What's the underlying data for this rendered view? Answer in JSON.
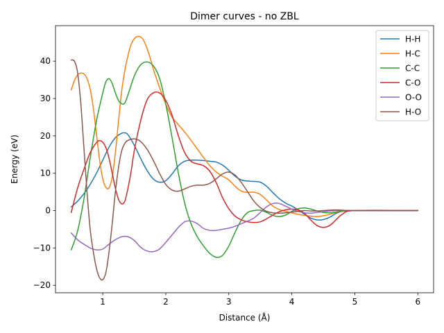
{
  "chart_data": {
    "type": "line",
    "title": "Dimer curves - no ZBL",
    "xlabel": "Distance (Å)",
    "ylabel": "Energy (eV)",
    "xlim": [
      0.25,
      6.25
    ],
    "ylim": [
      -22,
      49.5
    ],
    "xticks": [
      1,
      2,
      3,
      4,
      5,
      6
    ],
    "yticks": [
      -20,
      -10,
      0,
      10,
      20,
      30,
      40
    ],
    "grid": false,
    "legend_position": "upper right",
    "series": [
      {
        "name": "H-H",
        "color": "#1f77b4",
        "x": [
          0.5,
          0.6,
          0.7,
          0.8,
          0.9,
          1.0,
          1.1,
          1.2,
          1.3,
          1.35,
          1.4,
          1.5,
          1.6,
          1.7,
          1.8,
          1.9,
          2.0,
          2.1,
          2.2,
          2.3,
          2.4,
          2.5,
          2.6,
          2.7,
          2.8,
          2.9,
          3.0,
          3.1,
          3.2,
          3.3,
          3.4,
          3.5,
          3.6,
          3.7,
          3.8,
          3.9,
          4.0,
          4.1,
          4.2,
          4.3,
          4.4,
          4.5,
          4.6,
          4.7,
          4.8,
          5.0,
          6.0
        ],
        "y": [
          1.0,
          2.5,
          4.5,
          7.0,
          10.0,
          13.5,
          17.0,
          19.5,
          20.7,
          20.8,
          20.3,
          17.5,
          14.0,
          10.8,
          8.5,
          7.6,
          8.0,
          9.8,
          12.0,
          13.2,
          13.5,
          13.5,
          13.4,
          13.2,
          13.0,
          12.2,
          10.8,
          9.2,
          8.2,
          7.9,
          7.8,
          7.6,
          6.5,
          4.8,
          3.2,
          2.0,
          1.2,
          0.2,
          -1.0,
          -2.0,
          -2.5,
          -2.4,
          -1.8,
          -0.8,
          -0.2,
          0.0,
          0.0
        ]
      },
      {
        "name": "H-C",
        "color": "#ff7f0e",
        "x": [
          0.5,
          0.55,
          0.6,
          0.65,
          0.7,
          0.75,
          0.8,
          0.85,
          0.9,
          0.95,
          1.0,
          1.05,
          1.1,
          1.15,
          1.2,
          1.25,
          1.3,
          1.35,
          1.4,
          1.45,
          1.5,
          1.55,
          1.6,
          1.65,
          1.7,
          1.75,
          1.8,
          1.9,
          2.0,
          2.1,
          2.2,
          2.3,
          2.4,
          2.5,
          2.6,
          2.7,
          2.8,
          2.9,
          3.0,
          3.1,
          3.2,
          3.3,
          3.4,
          3.5,
          3.6,
          3.7,
          3.8,
          3.9,
          4.0,
          4.1,
          4.2,
          4.3,
          4.4,
          4.5,
          4.6,
          4.7,
          4.8,
          5.0,
          6.0
        ],
        "y": [
          32.3,
          34.8,
          36.3,
          36.8,
          36.6,
          35.3,
          32.5,
          27.5,
          20.5,
          13.5,
          8.5,
          6.2,
          6.1,
          9.0,
          15.5,
          24.0,
          32.0,
          37.5,
          41.5,
          44.5,
          46.0,
          46.6,
          46.5,
          45.5,
          43.5,
          41.0,
          38.0,
          33.0,
          28.5,
          25.0,
          23.0,
          21.0,
          18.8,
          16.5,
          14.2,
          12.0,
          10.3,
          9.2,
          8.2,
          6.5,
          5.2,
          4.9,
          4.9,
          4.3,
          2.8,
          1.2,
          0.3,
          -0.2,
          -0.6,
          -1.0,
          -1.3,
          -1.5,
          -1.6,
          -1.4,
          -1.0,
          -0.5,
          -0.2,
          0.0,
          0.0
        ]
      },
      {
        "name": "C-C",
        "color": "#2ca02c",
        "x": [
          0.5,
          0.6,
          0.7,
          0.8,
          0.9,
          1.0,
          1.05,
          1.1,
          1.15,
          1.2,
          1.25,
          1.3,
          1.35,
          1.4,
          1.5,
          1.6,
          1.7,
          1.8,
          1.9,
          2.0,
          2.1,
          2.2,
          2.3,
          2.4,
          2.5,
          2.6,
          2.7,
          2.8,
          2.9,
          3.0,
          3.1,
          3.2,
          3.3,
          3.4,
          3.5,
          3.6,
          3.7,
          3.8,
          3.9,
          4.0,
          4.1,
          4.2,
          4.3,
          4.4,
          4.5,
          4.6,
          4.7,
          4.8,
          5.0,
          6.0
        ],
        "y": [
          -10.5,
          -5.5,
          3.0,
          14.0,
          24.0,
          31.5,
          34.5,
          35.3,
          34.0,
          31.5,
          29.5,
          28.6,
          28.8,
          31.0,
          36.0,
          39.0,
          39.8,
          38.8,
          35.5,
          28.5,
          19.5,
          10.0,
          2.0,
          -3.5,
          -7.0,
          -9.5,
          -11.5,
          -12.5,
          -12.0,
          -9.5,
          -5.8,
          -2.5,
          -0.5,
          0.0,
          0.1,
          -0.5,
          -1.3,
          -1.6,
          -1.2,
          -0.2,
          0.5,
          0.7,
          0.4,
          -0.1,
          -0.5,
          -0.6,
          -0.4,
          -0.1,
          0.0,
          0.0
        ]
      },
      {
        "name": "C-O",
        "color": "#d62728",
        "x": [
          0.5,
          0.6,
          0.7,
          0.8,
          0.9,
          0.95,
          1.0,
          1.05,
          1.1,
          1.15,
          1.2,
          1.25,
          1.3,
          1.35,
          1.4,
          1.45,
          1.5,
          1.6,
          1.7,
          1.8,
          1.9,
          2.0,
          2.1,
          2.2,
          2.3,
          2.4,
          2.5,
          2.6,
          2.7,
          2.8,
          2.9,
          3.0,
          3.1,
          3.2,
          3.3,
          3.4,
          3.5,
          3.6,
          3.7,
          3.8,
          3.9,
          4.0,
          4.1,
          4.2,
          4.3,
          4.4,
          4.5,
          4.6,
          4.7,
          4.8,
          5.0,
          6.0
        ],
        "y": [
          -0.5,
          6.0,
          11.0,
          15.5,
          18.2,
          18.7,
          18.3,
          16.8,
          14.0,
          10.0,
          6.0,
          3.0,
          1.8,
          2.5,
          6.0,
          10.5,
          16.0,
          24.0,
          29.5,
          31.5,
          31.5,
          29.5,
          25.5,
          20.0,
          15.5,
          13.2,
          12.5,
          12.0,
          10.5,
          7.5,
          3.5,
          0.5,
          -1.5,
          -2.5,
          -3.0,
          -3.2,
          -3.0,
          -2.2,
          -1.2,
          -0.3,
          0.2,
          0.4,
          0.2,
          -0.7,
          -2.5,
          -4.0,
          -4.5,
          -4.0,
          -2.5,
          -1.0,
          0.0,
          0.0
        ]
      },
      {
        "name": "O-O",
        "color": "#9467bd",
        "x": [
          0.5,
          0.6,
          0.7,
          0.8,
          0.9,
          1.0,
          1.1,
          1.2,
          1.3,
          1.4,
          1.5,
          1.6,
          1.7,
          1.8,
          1.9,
          2.0,
          2.1,
          2.2,
          2.3,
          2.4,
          2.5,
          2.6,
          2.7,
          2.8,
          2.9,
          3.0,
          3.1,
          3.2,
          3.3,
          3.4,
          3.5,
          3.6,
          3.7,
          3.8,
          3.9,
          4.0,
          4.1,
          4.2,
          4.3,
          4.4,
          4.5,
          4.6,
          4.7,
          4.8,
          5.0,
          6.0
        ],
        "y": [
          -6.0,
          -7.8,
          -9.0,
          -10.0,
          -10.5,
          -10.3,
          -9.0,
          -7.8,
          -7.0,
          -7.0,
          -8.0,
          -9.8,
          -10.8,
          -11.0,
          -10.3,
          -8.5,
          -6.5,
          -4.5,
          -3.0,
          -2.8,
          -3.5,
          -4.8,
          -5.3,
          -5.3,
          -5.0,
          -4.7,
          -4.2,
          -3.5,
          -2.8,
          -2.0,
          -0.5,
          1.0,
          1.9,
          1.9,
          1.2,
          0.4,
          -0.2,
          -0.6,
          -0.7,
          -0.5,
          -0.3,
          -0.1,
          0.0,
          0.0,
          0.0,
          0.0
        ]
      },
      {
        "name": "H-O",
        "color": "#8c564b",
        "x": [
          0.5,
          0.55,
          0.6,
          0.65,
          0.7,
          0.75,
          0.8,
          0.85,
          0.9,
          0.95,
          1.0,
          1.05,
          1.1,
          1.15,
          1.2,
          1.25,
          1.3,
          1.35,
          1.4,
          1.5,
          1.6,
          1.7,
          1.8,
          1.9,
          2.0,
          2.1,
          2.2,
          2.3,
          2.4,
          2.5,
          2.6,
          2.7,
          2.8,
          2.9,
          3.0,
          3.1,
          3.2,
          3.3,
          3.4,
          3.5,
          3.6,
          3.7,
          3.8,
          3.9,
          4.0,
          4.1,
          4.2,
          4.3,
          4.4,
          4.5,
          4.6,
          4.7,
          4.8,
          5.0,
          6.0
        ],
        "y": [
          40.3,
          40.0,
          37.0,
          29.0,
          17.0,
          5.0,
          -5.0,
          -11.0,
          -15.5,
          -18.0,
          -18.5,
          -16.5,
          -11.0,
          -3.5,
          5.0,
          11.5,
          16.0,
          18.0,
          18.8,
          19.2,
          18.5,
          16.5,
          13.5,
          10.0,
          7.0,
          5.5,
          5.2,
          5.8,
          6.5,
          6.8,
          6.8,
          7.3,
          8.5,
          9.8,
          10.3,
          9.5,
          7.5,
          5.0,
          2.5,
          0.8,
          -0.2,
          -0.6,
          -0.7,
          -0.6,
          -0.4,
          -0.2,
          0.0,
          -0.1,
          -0.1,
          0.0,
          0.1,
          0.2,
          0.1,
          0.0,
          0.0
        ]
      }
    ]
  }
}
